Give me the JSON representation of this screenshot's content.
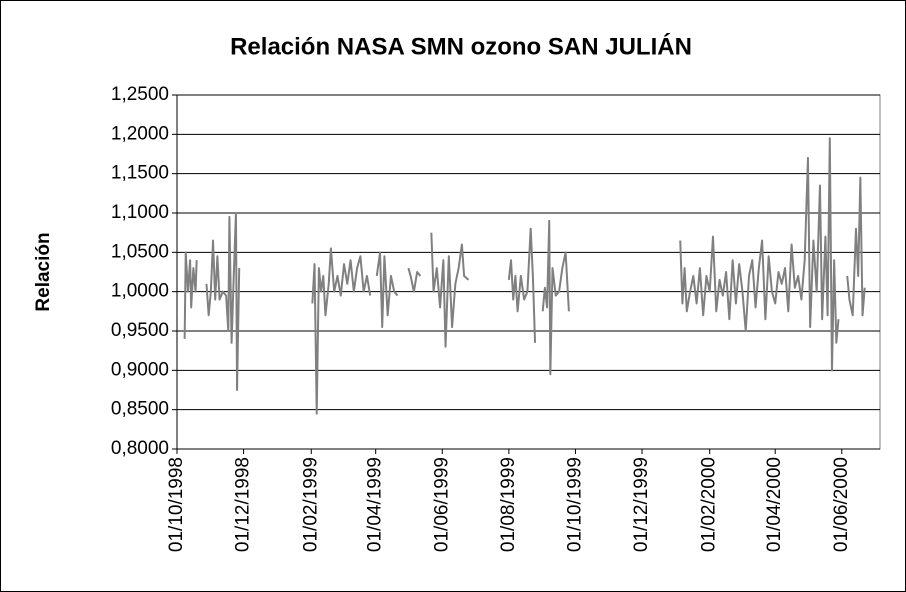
{
  "chart_data": {
    "type": "line",
    "title": "Relación NASA SMN ozono SAN JULIÁN",
    "y_label": "Relación",
    "grid": true,
    "xlim": [
      "01/10/1998",
      "06/07/2000"
    ],
    "xticks": [
      "01/10/1998",
      "01/12/1998",
      "01/02/1999",
      "01/04/1999",
      "01/06/1999",
      "01/08/1999",
      "01/10/1999",
      "01/12/1999",
      "01/02/2000",
      "01/04/2000",
      "01/06/2000"
    ],
    "ylim": [
      0.8,
      1.25
    ],
    "yticks": [
      {
        "value": 0.8,
        "label": "0,8000"
      },
      {
        "value": 0.85,
        "label": "0,8500"
      },
      {
        "value": 0.9,
        "label": "0,9000"
      },
      {
        "value": 0.95,
        "label": "0,9500"
      },
      {
        "value": 1.0,
        "label": "1,0000"
      },
      {
        "value": 1.05,
        "label": "1,0500"
      },
      {
        "value": 1.1,
        "label": "1,1000"
      },
      {
        "value": 1.15,
        "label": "1,1500"
      },
      {
        "value": 1.2,
        "label": "1,2000"
      },
      {
        "value": 1.25,
        "label": "1,2500"
      }
    ],
    "series": [
      {
        "name": "Relación",
        "color": "#808080",
        "x": [
          "08/10/1998",
          "09/10/1998",
          "11/10/1998",
          "13/10/1998",
          "14/10/1998",
          "16/10/1998",
          "18/10/1998",
          "19/10/1998",
          "24/10/1998",
          "28/10/1998",
          "30/10/1998",
          "01/11/1998",
          "03/11/1998",
          "05/11/1998",
          "07/11/1998",
          "09/11/1998",
          "12/11/1998",
          "15/11/1998",
          "17/11/1998",
          "18/11/1998",
          "20/11/1998",
          "22/11/1998",
          "24/11/1998",
          "25/11/1998",
          "27/11/1998",
          "01/01/1999",
          "02/02/1999",
          "04/02/1999",
          "06/02/1999",
          "08/02/1999",
          "10/02/1999",
          "12/02/1999",
          "14/02/1999",
          "17/02/1999",
          "19/02/1999",
          "22/02/1999",
          "25/02/1999",
          "28/02/1999",
          "03/03/1999",
          "06/03/1999",
          "09/03/1999",
          "12/03/1999",
          "15/03/1999",
          "18/03/1999",
          "21/03/1999",
          "24/03/1999",
          "27/03/1999",
          "30/03/1999",
          "02/04/1999",
          "05/04/1999",
          "07/04/1999",
          "09/04/1999",
          "12/04/1999",
          "15/04/1999",
          "18/04/1999",
          "21/04/1999",
          "26/04/1999",
          "01/05/1999",
          "03/05/1999",
          "06/05/1999",
          "09/05/1999",
          "12/05/1999",
          "17/05/1999",
          "22/05/1999",
          "24/05/1999",
          "27/05/1999",
          "30/05/1999",
          "02/06/1999",
          "04/06/1999",
          "07/06/1999",
          "10/06/1999",
          "13/06/1999",
          "16/06/1999",
          "19/06/1999",
          "21/06/1999",
          "25/06/1999",
          "15/07/1999",
          "01/08/1999",
          "03/08/1999",
          "05/08/1999",
          "07/08/1999",
          "09/08/1999",
          "12/08/1999",
          "15/08/1999",
          "18/08/1999",
          "21/08/1999",
          "23/08/1999",
          "25/08/1999",
          "28/08/1999",
          "01/09/1999",
          "03/09/1999",
          "05/09/1999",
          "07/09/1999",
          "08/09/1999",
          "10/09/1999",
          "13/09/1999",
          "16/09/1999",
          "19/09/1999",
          "22/09/1999",
          "25/09/1999",
          "15/11/1999",
          "05/01/2000",
          "07/01/2000",
          "09/01/2000",
          "11/01/2000",
          "14/01/2000",
          "17/01/2000",
          "20/01/2000",
          "23/01/2000",
          "26/01/2000",
          "29/01/2000",
          "01/02/2000",
          "04/02/2000",
          "07/02/2000",
          "10/02/2000",
          "13/02/2000",
          "16/02/2000",
          "19/02/2000",
          "22/02/2000",
          "25/02/2000",
          "28/02/2000",
          "02/03/2000",
          "05/03/2000",
          "08/03/2000",
          "11/03/2000",
          "14/03/2000",
          "17/03/2000",
          "20/03/2000",
          "23/03/2000",
          "26/03/2000",
          "29/03/2000",
          "01/04/2000",
          "04/04/2000",
          "07/04/2000",
          "10/04/2000",
          "13/04/2000",
          "16/04/2000",
          "19/04/2000",
          "22/04/2000",
          "25/04/2000",
          "28/04/2000",
          "01/05/2000",
          "03/05/2000",
          "06/05/2000",
          "09/05/2000",
          "12/05/2000",
          "14/05/2000",
          "17/05/2000",
          "19/05/2000",
          "21/05/2000",
          "23/05/2000",
          "25/05/2000",
          "27/05/2000",
          "29/05/2000",
          "02/06/2000",
          "06/06/2000",
          "08/06/2000",
          "11/06/2000",
          "14/06/2000",
          "16/06/2000",
          "18/06/2000",
          "20/06/2000",
          "22/06/2000"
        ],
        "values": [
          0.94,
          1.05,
          1.0,
          1.04,
          0.98,
          1.03,
          1.0,
          1.04,
          null,
          1.01,
          0.97,
          1.0,
          1.065,
          0.99,
          1.045,
          0.99,
          1.0,
          0.995,
          0.95,
          1.095,
          0.935,
          1.02,
          1.1,
          0.875,
          1.03,
          null,
          0.985,
          1.035,
          0.845,
          1.03,
          1.0,
          1.02,
          0.97,
          1.01,
          1.055,
          1.0,
          1.02,
          0.995,
          1.035,
          1.01,
          1.04,
          1.0,
          1.03,
          1.045,
          1.0,
          1.02,
          0.995,
          null,
          1.02,
          1.05,
          0.955,
          1.045,
          0.97,
          1.02,
          1.0,
          0.995,
          null,
          1.03,
          1.02,
          1.0,
          1.025,
          1.02,
          null,
          1.075,
          1.0,
          1.03,
          0.98,
          1.04,
          0.93,
          1.045,
          0.955,
          1.01,
          1.03,
          1.06,
          1.02,
          1.015,
          null,
          1.015,
          1.04,
          0.99,
          1.02,
          0.975,
          1.02,
          0.99,
          1.0,
          1.08,
          1.02,
          0.935,
          null,
          0.975,
          1.005,
          0.98,
          1.09,
          0.895,
          1.03,
          0.995,
          1.0,
          1.03,
          1.05,
          0.975,
          null,
          1.065,
          0.985,
          1.03,
          0.975,
          1.0,
          1.02,
          0.985,
          1.03,
          0.97,
          1.02,
          1.0,
          1.07,
          0.975,
          1.015,
          0.995,
          1.025,
          0.965,
          1.04,
          0.985,
          1.035,
          1.0,
          0.95,
          1.02,
          1.04,
          0.98,
          1.03,
          1.065,
          0.965,
          1.045,
          1.0,
          0.985,
          1.025,
          1.01,
          1.03,
          0.975,
          1.06,
          1.005,
          1.02,
          0.99,
          1.04,
          1.17,
          0.955,
          1.065,
          1.0,
          1.135,
          0.965,
          1.07,
          0.97,
          1.195,
          0.9,
          1.04,
          0.935,
          0.965,
          null,
          1.02,
          0.99,
          0.97,
          1.08,
          1.02,
          1.145,
          0.97,
          1.005
        ]
      }
    ]
  }
}
